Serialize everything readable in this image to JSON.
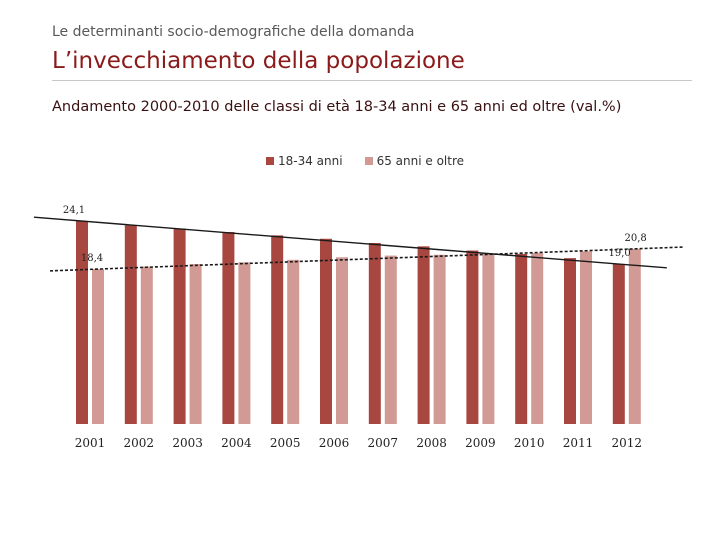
{
  "header": {
    "supertitle": "Le determinanti socio-demografiche della domanda",
    "title": "L’invecchiamento della popolazione",
    "subtitle": "Andamento 2000-2010 delle classi di età 18-34 anni e 65 anni ed oltre (val.%)"
  },
  "colors": {
    "title": "#8b1a1a",
    "series_1": "#a8473f",
    "series_2": "#d29a95",
    "trendline": "#1a1a1a"
  },
  "chart_data": {
    "type": "bar",
    "title": "Andamento 2000-2010 delle classi di età 18-34 anni e 65 anni ed oltre (val.%)",
    "xlabel": "",
    "ylabel": "",
    "categories": [
      "2001",
      "2002",
      "2003",
      "2004",
      "2005",
      "2006",
      "2007",
      "2008",
      "2009",
      "2010",
      "2011",
      "2012"
    ],
    "series": [
      {
        "name": "18-34 anni",
        "values": [
          24.1,
          23.6,
          23.2,
          22.8,
          22.4,
          22.0,
          21.5,
          21.1,
          20.6,
          20.2,
          19.7,
          19.0
        ]
      },
      {
        "name": "65 anni e oltre",
        "values": [
          18.4,
          18.7,
          19.0,
          19.2,
          19.5,
          19.8,
          20.0,
          20.1,
          20.2,
          20.3,
          20.5,
          20.8
        ]
      }
    ],
    "data_labels": [
      {
        "series": "18-34 anni",
        "category": "2001",
        "text": "24,1"
      },
      {
        "series": "65 anni e oltre",
        "category": "2001",
        "text": "18,4"
      },
      {
        "series": "65 anni e oltre",
        "category": "2012",
        "text": "20,8"
      },
      {
        "series": "18-34 anni",
        "category": "2012",
        "text": "19,0"
      }
    ],
    "trendlines": [
      "dashed black",
      "solid black"
    ],
    "legend_position": "top-center",
    "grid": false,
    "ylim": [
      0,
      26
    ]
  }
}
